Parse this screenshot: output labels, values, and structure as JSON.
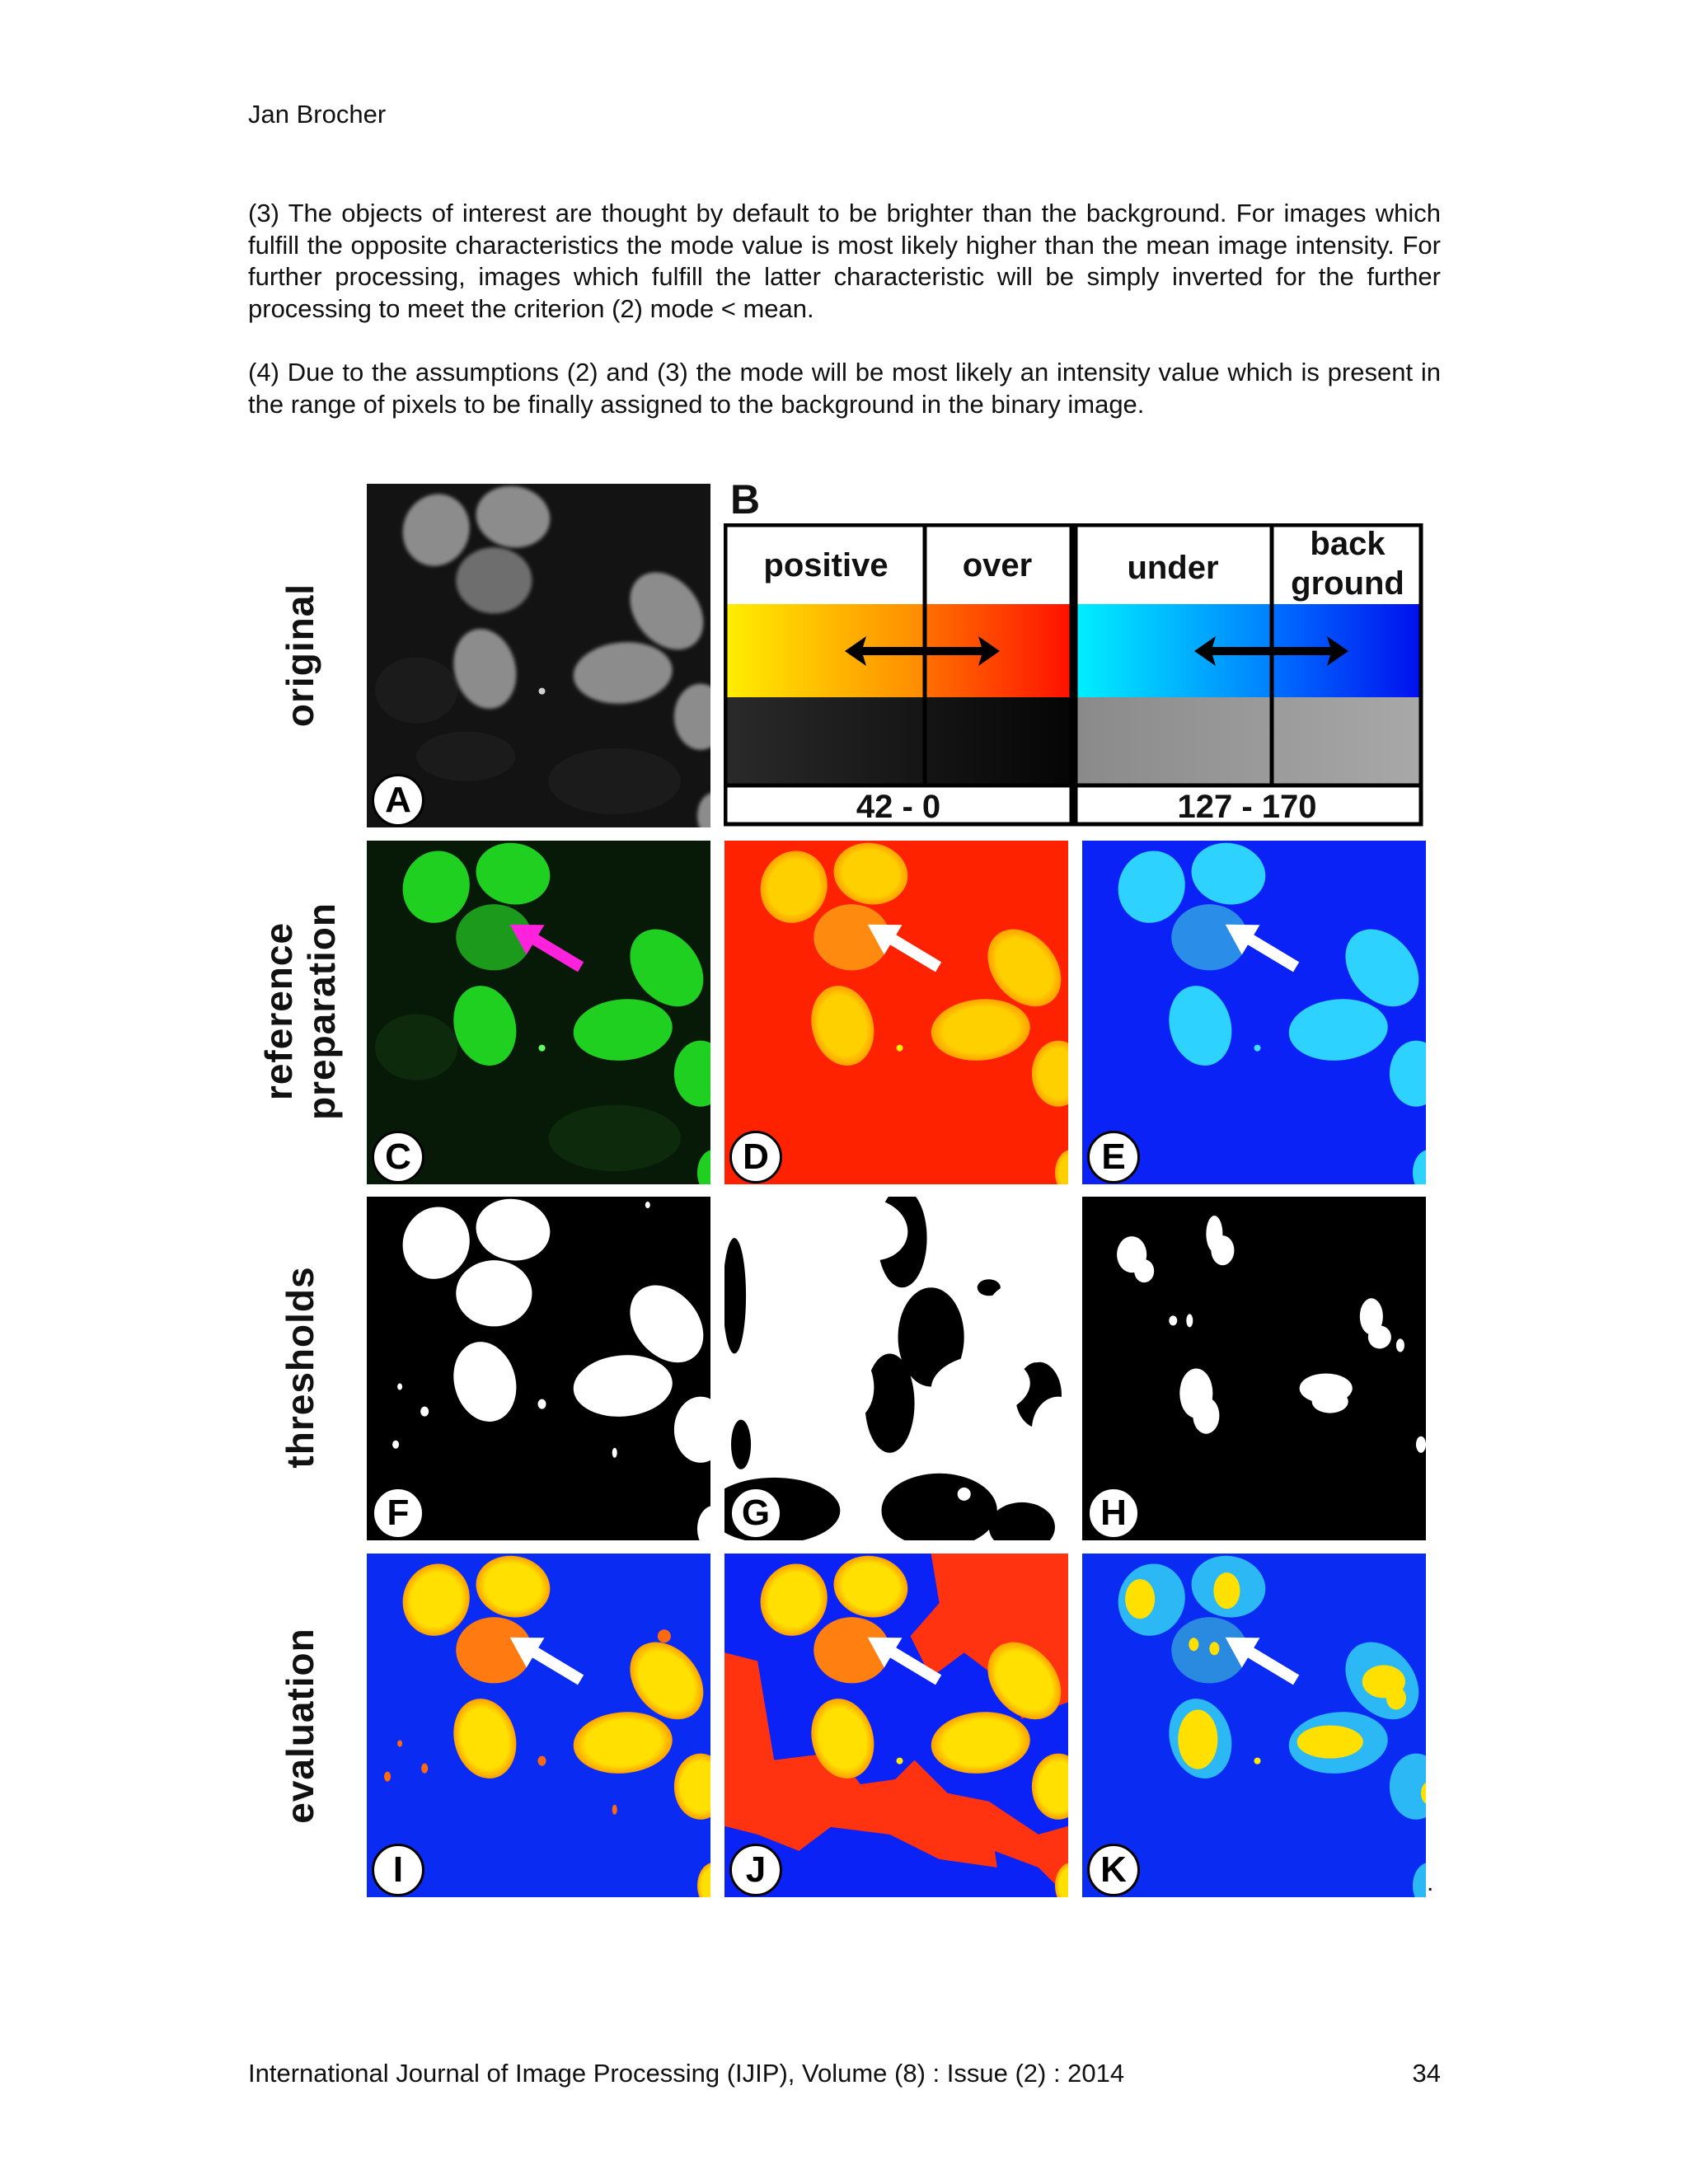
{
  "header": {
    "author": "Jan Brocher"
  },
  "body": {
    "paragraphs": [
      "(3) The objects of interest are thought by default to be brighter than the background. For images which fulfill the opposite characteristics the mode value is most likely higher than the mean image intensity. For further processing, images which fulfill the latter characteristic will be simply inverted for the further processing to meet the criterion (2) mode < mean.",
      "(4) Due to the assumptions (2) and (3) the mode will be most likely an intensity value which is present in the range of pixels to be finally assigned to the background in the binary image."
    ]
  },
  "figure": {
    "row_labels": {
      "original": "original",
      "reference_line1": "reference",
      "reference_line2": "preparation",
      "thresholds": "thresholds",
      "evaluation": "evaluation"
    },
    "panel_b": {
      "letter": "B",
      "headers": {
        "positive": "positive",
        "over": "over",
        "under": "under",
        "background_line1": "back",
        "background_line2": "ground"
      },
      "ranges": [
        "42 - 0",
        "127 - 170"
      ],
      "colors": {
        "positive_gradient": [
          "#ffee00",
          "#ff8a00"
        ],
        "over_gradient": [
          "#ff7000",
          "#ff1000"
        ],
        "under_gradient": [
          "#00f0ff",
          "#0080ff"
        ],
        "background_gradient": [
          "#0070ff",
          "#0010ee"
        ],
        "dark_gray": [
          "#2a2a2a",
          "#050505"
        ],
        "light_gray": [
          "#8a8a8a",
          "#a8a8a8"
        ]
      }
    },
    "panels": [
      {
        "letter": "A",
        "style": "original-grayscale"
      },
      {
        "letter": "C",
        "style": "green-reference"
      },
      {
        "letter": "D",
        "style": "heat-lut"
      },
      {
        "letter": "E",
        "style": "cool-lut"
      },
      {
        "letter": "F",
        "style": "threshold-binary"
      },
      {
        "letter": "G",
        "style": "threshold-binary-over"
      },
      {
        "letter": "H",
        "style": "threshold-binary-under"
      },
      {
        "letter": "I",
        "style": "evaluation-correct"
      },
      {
        "letter": "J",
        "style": "evaluation-over"
      },
      {
        "letter": "K",
        "style": "evaluation-under"
      }
    ],
    "arrow_colors": {
      "reference": "#ff22dd",
      "others": "#ffffff"
    },
    "trailing_mark": "."
  },
  "footer": {
    "journal": "International Journal of Image Processing (IJIP), Volume (8) : Issue (2) : 2014",
    "page": "34"
  }
}
